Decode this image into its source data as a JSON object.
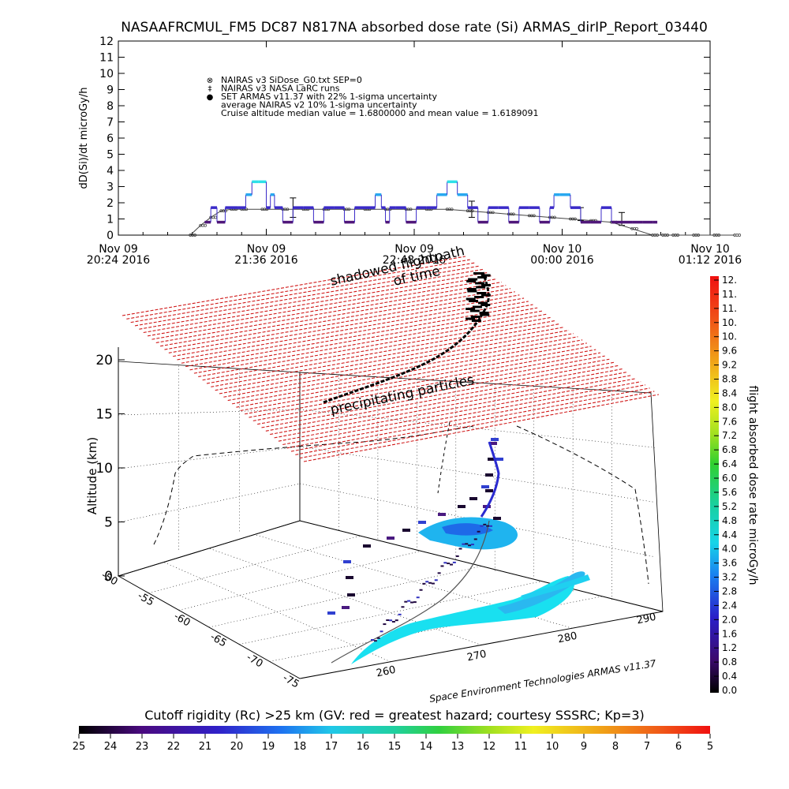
{
  "title": "NASAAFRCMUL_FM5 DC87 N817NA absorbed dose rate (Si) ARMAS_dirIP_Report_03440",
  "top_panel": {
    "ylabel": "dD(Si)/dt microGy/h",
    "y_ticks": [
      "0",
      "1",
      "2",
      "3",
      "4",
      "5",
      "6",
      "7",
      "8",
      "9",
      "10",
      "11",
      "12"
    ],
    "x_ticks": [
      {
        "line1": "Nov 09",
        "line2": "20:24 2016"
      },
      {
        "line1": "Nov 09",
        "line2": "21:36 2016"
      },
      {
        "line1": "Nov 09",
        "line2": "22:48 2016"
      },
      {
        "line1": "Nov 10",
        "line2": "00:00 2016"
      },
      {
        "line1": "Nov 10",
        "line2": "01:12 2016"
      }
    ],
    "legend": [
      {
        "marker": "⊗",
        "text": "NAIRAS v3 SiDose_G0.txt SEP=0"
      },
      {
        "marker": "‡",
        "text": "NAIRAS v3 NASA LaRC runs"
      },
      {
        "marker": "●",
        "text": "SET ARMAS v11.37 with 22% 1-sigma uncertainty"
      },
      {
        "marker": "",
        "text": "average NAIRAS v2 10% 1-sigma uncertainty"
      },
      {
        "marker": "",
        "text": "Cruise altitude median value =  1.6800000 and mean value =  1.6189091"
      }
    ]
  },
  "three_d": {
    "z_label": "Altitude (km)",
    "z_ticks": [
      "0",
      "5",
      "10",
      "15",
      "20"
    ],
    "lat_ticks": [
      "-50",
      "-55",
      "-60",
      "-65",
      "-70",
      "-75"
    ],
    "lon_ticks": [
      "260",
      "270",
      "280",
      "290"
    ],
    "annotation_shadow": "shadowed flightpath",
    "annotation_time": "of time",
    "annotation_particles": "precipitating particles",
    "credit": "Space Environment Technologies ARMAS v11.37"
  },
  "colorbar_right": {
    "label": "flight absorbed dose rate microGy/h",
    "ticks": [
      "12.",
      "11.",
      "11.",
      "10.",
      "10.",
      "9.6",
      "9.2",
      "8.8",
      "8.4",
      "8.0",
      "7.6",
      "7.2",
      "6.8",
      "6.4",
      "6.0",
      "5.6",
      "5.2",
      "4.8",
      "4.4",
      "4.0",
      "3.6",
      "3.2",
      "2.8",
      "2.4",
      "2.0",
      "1.6",
      "1.2",
      "0.8",
      "0.4",
      "0.0"
    ]
  },
  "colorbar_bottom": {
    "label": "Cutoff rigidity (Rc) >25 km (GV: red = greatest hazard; courtesy SSSRC; Kp=3)",
    "ticks": [
      "25",
      "24",
      "23",
      "22",
      "21",
      "20",
      "19",
      "18",
      "17",
      "16",
      "15",
      "14",
      "13",
      "12",
      "11",
      "10",
      "9",
      "8",
      "7",
      "6",
      "5"
    ]
  },
  "chart_data": {
    "type": "scatter",
    "title": "NASAAFRCMUL_FM5 DC87 N817NA absorbed dose rate (Si) ARMAS_dirIP_Report_03440",
    "ylabel": "dD(Si)/dt microGy/h",
    "ylim": [
      0,
      12
    ],
    "x_range": [
      "Nov 09 20:24 2016",
      "Nov 10 01:12 2016"
    ],
    "series": [
      {
        "name": "NAIRAS v3 SiDose_G0.txt SEP=0",
        "x_minutes": [
          35,
          40,
          45,
          50,
          55,
          60,
          70,
          80,
          90,
          100,
          110,
          120,
          130,
          140,
          150,
          160,
          170,
          180,
          190,
          200,
          210,
          220,
          230,
          240,
          250,
          260,
          265,
          270,
          280,
          290,
          300
        ],
        "values": [
          0.0,
          0.6,
          1.1,
          1.5,
          1.6,
          1.6,
          1.6,
          1.6,
          1.6,
          1.6,
          1.6,
          1.6,
          1.6,
          1.6,
          1.6,
          1.6,
          1.5,
          1.4,
          1.3,
          1.2,
          1.1,
          1.0,
          0.9,
          0.8,
          0.4,
          0.0,
          0.0,
          0.0,
          0.0,
          0.0,
          0.0
        ]
      },
      {
        "name": "SET ARMAS v11.37 with 22% 1-sigma uncertainty",
        "x_minutes": [
          42,
          45,
          48,
          52,
          58,
          62,
          65,
          68,
          72,
          74,
          76,
          80,
          85,
          90,
          95,
          100,
          105,
          110,
          115,
          120,
          125,
          128,
          130,
          132,
          135,
          140,
          145,
          150,
          155,
          160,
          165,
          170,
          175,
          180,
          185,
          190,
          195,
          200,
          205,
          210,
          212,
          215,
          220,
          225,
          230,
          235,
          240,
          245,
          250,
          255,
          260
        ],
        "values": [
          0.8,
          1.7,
          0.8,
          1.7,
          1.7,
          2.5,
          3.3,
          3.3,
          1.7,
          2.5,
          1.7,
          0.8,
          1.7,
          1.7,
          0.8,
          1.7,
          1.7,
          0.8,
          1.7,
          1.7,
          2.5,
          1.7,
          0.8,
          1.7,
          1.7,
          0.8,
          1.7,
          1.7,
          2.5,
          3.3,
          2.5,
          1.7,
          0.8,
          1.7,
          1.7,
          0.8,
          1.7,
          1.7,
          0.8,
          1.7,
          2.5,
          2.5,
          1.7,
          0.8,
          0.8,
          1.7,
          0.8,
          0.8,
          0.8,
          0.8,
          0.8
        ]
      }
    ]
  }
}
